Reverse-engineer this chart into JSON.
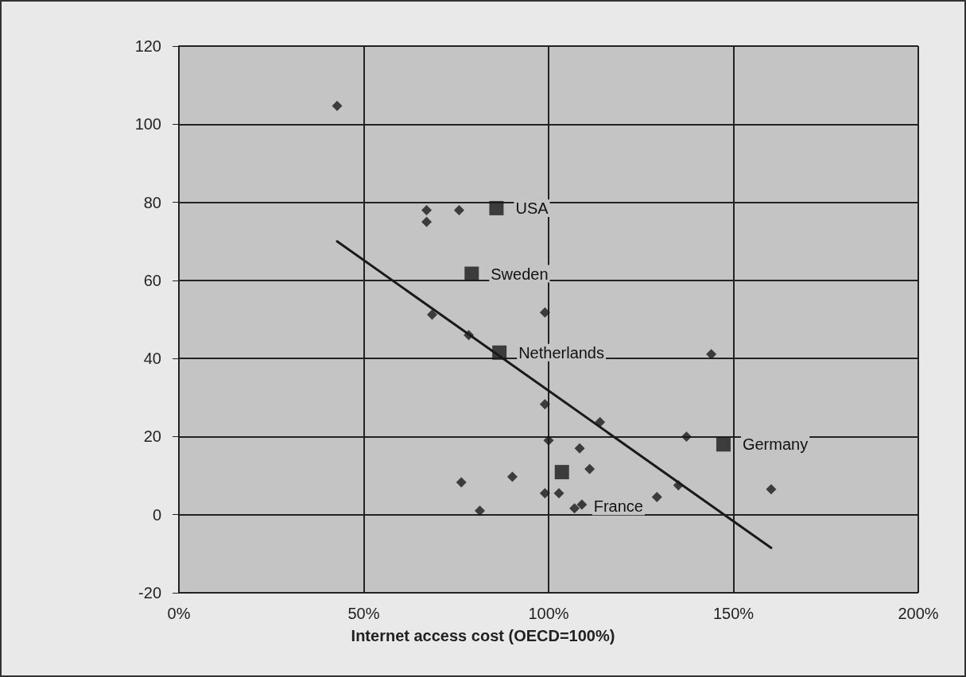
{
  "chart_data": {
    "type": "scatter",
    "xlabel": "Internet access cost (OECD=100%)",
    "xlim": [
      0,
      200
    ],
    "xticks": [
      {
        "value": 0,
        "label": "0%"
      },
      {
        "value": 50,
        "label": "50%"
      },
      {
        "value": 100,
        "label": "100%"
      },
      {
        "value": 150,
        "label": "150%"
      },
      {
        "value": 200,
        "label": "200%"
      }
    ],
    "ylim": [
      -20,
      120
    ],
    "yticks": [
      -20,
      0,
      20,
      40,
      60,
      80,
      100,
      120
    ],
    "grid": true,
    "series": [
      {
        "marker": "diamond",
        "color": "#1a1a1a",
        "x": [
          42.8,
          67,
          67,
          75.8,
          68.5,
          78.4,
          99,
          144,
          99,
          113.9,
          137.3,
          100,
          108.4,
          111.1,
          90.2,
          76.4,
          99,
          102.8,
          81.4,
          107,
          109,
          129.3,
          135.1,
          160.2
        ],
        "values": [
          104.7,
          78,
          75,
          78,
          51.2,
          46,
          51.8,
          41.1,
          28.3,
          23.7,
          20,
          19,
          17,
          11.7,
          9.7,
          8.3,
          5.5,
          5.5,
          1,
          1.6,
          2.6,
          4.5,
          7.5,
          6.5
        ]
      },
      {
        "marker": "square",
        "color": "#1a1a1a",
        "x": [
          85.9,
          79.2,
          86.7,
          147.3,
          103.6
        ],
        "values": [
          78.5,
          61.7,
          41.5,
          18,
          10.9
        ]
      },
      {
        "type": "line",
        "marker": "none",
        "line_style": "solid",
        "color": "#1a1a1a",
        "x": [
          42.8,
          160.2
        ],
        "values": [
          70,
          -8.5
        ]
      }
    ],
    "annotations": [
      {
        "text": "USA",
        "x": 85.9,
        "y": 78.5
      },
      {
        "text": "Sweden",
        "x": 79.2,
        "y": 61.7
      },
      {
        "text": "Netherlands",
        "x": 86.7,
        "y": 41.5
      },
      {
        "text": "France",
        "x": 103.6,
        "y": 10.9
      },
      {
        "text": "Germany",
        "x": 147.3,
        "y": 18
      }
    ]
  }
}
